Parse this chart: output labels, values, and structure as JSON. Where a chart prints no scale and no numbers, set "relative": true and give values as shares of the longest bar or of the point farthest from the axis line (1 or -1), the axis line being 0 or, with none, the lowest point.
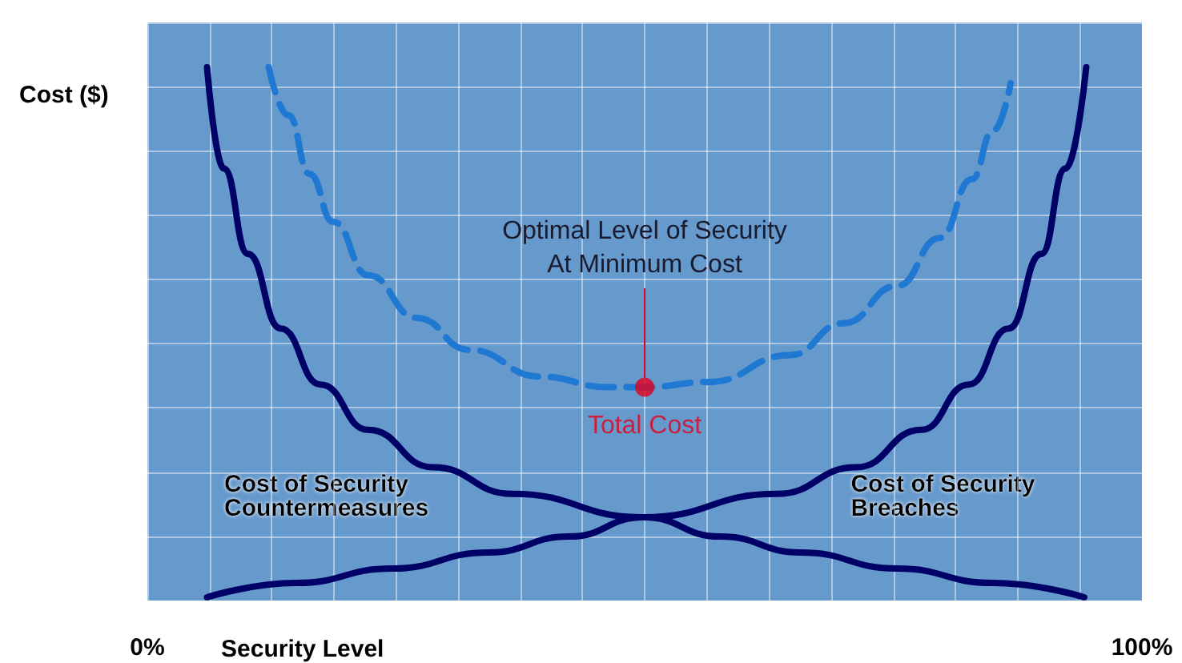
{
  "chart_data": {
    "type": "line",
    "relative": true,
    "xlabel": "Security Level",
    "ylabel": "Cost ($)",
    "xlim": [
      0,
      100
    ],
    "xticks": [
      {
        "value": 0,
        "label": "0%"
      },
      {
        "value": 6.25,
        "label": null
      },
      {
        "value": 12.5,
        "label": null
      },
      {
        "value": 18.75,
        "label": null
      },
      {
        "value": 25,
        "label": null
      },
      {
        "value": 31.25,
        "label": null
      },
      {
        "value": 37.5,
        "label": null
      },
      {
        "value": 43.75,
        "label": null
      },
      {
        "value": 50,
        "label": null
      },
      {
        "value": 56.25,
        "label": null
      },
      {
        "value": 62.5,
        "label": null
      },
      {
        "value": 68.75,
        "label": null
      },
      {
        "value": 75,
        "label": null
      },
      {
        "value": 81.25,
        "label": null
      },
      {
        "value": 87.5,
        "label": null
      },
      {
        "value": 93.75,
        "label": null
      },
      {
        "value": 100,
        "label": "100%"
      }
    ],
    "grid": true,
    "legend": false,
    "marker": "none",
    "annotations": [
      "Optimal Level of Security\nAt Minimum Cost"
    ],
    "series": [
      {
        "name": "Cost of Security Countermeasures",
        "color": "#000066",
        "line_style": "solid",
        "x": [
          6.0,
          7.7,
          10.1,
          13.4,
          17.4,
          22.2,
          28.7,
          36.7,
          49.9,
          57.6,
          65.7,
          75.4,
          85.0,
          94.2
        ],
        "values": [
          1.0,
          0.81,
          0.65,
          0.51,
          0.405,
          0.32,
          0.25,
          0.2,
          0.156,
          0.12,
          0.09,
          0.06,
          0.033,
          0.006
        ]
      },
      {
        "name": "Cost of Security Breaches",
        "color": "#000066",
        "line_style": "solid",
        "x": [
          6.0,
          15.0,
          24.6,
          34.3,
          42.4,
          49.9,
          63.3,
          71.3,
          77.8,
          82.6,
          86.6,
          89.9,
          92.3,
          94.4
        ],
        "values": [
          0.006,
          0.033,
          0.06,
          0.09,
          0.12,
          0.156,
          0.2,
          0.25,
          0.32,
          0.405,
          0.51,
          0.65,
          0.81,
          1.0
        ]
      },
      {
        "type": "line",
        "color": "#1f78d1",
        "line_style": "dashed",
        "x": [
          12.2,
          14.2,
          16.3,
          18.7,
          22.2,
          27.1,
          32.4,
          39.5,
          46.4,
          49.9,
          56.5,
          64.6,
          70.0,
          75.4,
          79.7,
          82.9,
          85.0,
          86.8
        ],
        "values": [
          1.0,
          0.91,
          0.8,
          0.71,
          0.61,
          0.53,
          0.47,
          0.42,
          0.4,
          0.4,
          0.41,
          0.46,
          0.52,
          0.59,
          0.68,
          0.79,
          0.88,
          0.97
        ]
      },
      {
        "type": "scatter",
        "name": "Total Cost",
        "color": "#e3001b",
        "marker": "circle",
        "x": [
          50
        ],
        "values": [
          0.4
        ]
      }
    ]
  }
}
